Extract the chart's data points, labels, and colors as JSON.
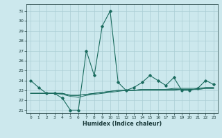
{
  "xlabel": "Humidex (Indice chaleur)",
  "ylabel": "",
  "bg_color": "#cce8ed",
  "grid_color": "#aacdd4",
  "line_color": "#1a6b5e",
  "xlim": [
    -0.5,
    23.5
  ],
  "ylim": [
    20.7,
    31.7
  ],
  "yticks": [
    21,
    22,
    23,
    24,
    25,
    26,
    27,
    28,
    29,
    30,
    31
  ],
  "xticks": [
    0,
    1,
    2,
    3,
    4,
    5,
    6,
    7,
    8,
    9,
    10,
    11,
    12,
    13,
    14,
    15,
    16,
    17,
    18,
    19,
    20,
    21,
    22,
    23
  ],
  "series": [
    [
      24.0,
      23.3,
      22.7,
      22.7,
      22.2,
      21.0,
      21.0,
      27.0,
      24.5,
      29.5,
      31.0,
      23.8,
      23.0,
      23.3,
      23.8,
      24.5,
      24.0,
      23.5,
      24.3,
      23.0,
      23.0,
      23.2,
      24.0,
      23.6
    ],
    [
      22.7,
      22.7,
      22.7,
      22.7,
      22.7,
      22.5,
      22.5,
      22.6,
      22.7,
      22.8,
      22.9,
      23.0,
      23.0,
      23.0,
      23.1,
      23.1,
      23.1,
      23.1,
      23.1,
      23.1,
      23.1,
      23.1,
      23.2,
      23.2
    ],
    [
      22.7,
      22.7,
      22.7,
      22.7,
      22.7,
      22.5,
      22.5,
      22.6,
      22.7,
      22.8,
      22.9,
      23.0,
      23.0,
      23.0,
      23.1,
      23.1,
      23.1,
      23.1,
      23.2,
      23.2,
      23.2,
      23.2,
      23.3,
      23.3
    ],
    [
      22.7,
      22.7,
      22.7,
      22.7,
      22.6,
      22.4,
      22.3,
      22.5,
      22.6,
      22.7,
      22.8,
      22.9,
      23.0,
      23.0,
      23.0,
      23.0,
      23.0,
      23.0,
      23.0,
      23.1,
      23.1,
      23.1,
      23.2,
      23.2
    ]
  ]
}
